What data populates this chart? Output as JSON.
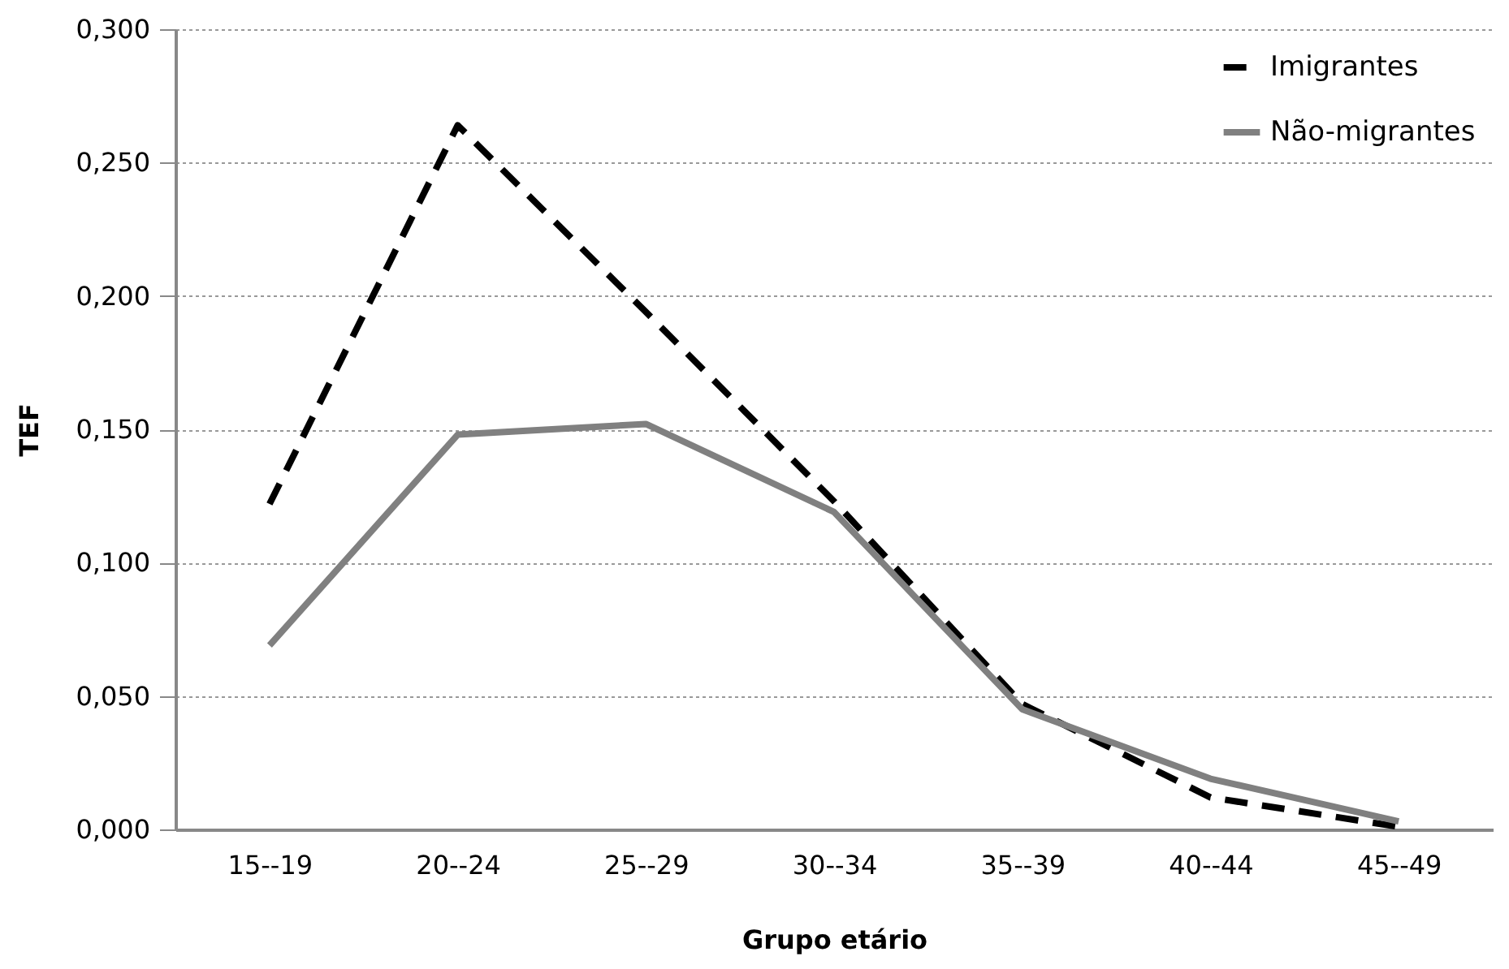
{
  "chart_data": {
    "type": "line",
    "xlabel": "Grupo etário",
    "ylabel": "TEF",
    "categories": [
      "15--19",
      "20--24",
      "25--29",
      "30--34",
      "35--39",
      "40--44",
      "45--49"
    ],
    "series": [
      {
        "name": "Imigrantes",
        "color": "#000000",
        "line_style": "dashed",
        "values": [
          0.122,
          0.264,
          0.194,
          0.123,
          0.047,
          0.012,
          0.001
        ]
      },
      {
        "name": "Não-migrantes",
        "color": "#808080",
        "line_style": "solid",
        "values": [
          0.069,
          0.148,
          0.152,
          0.119,
          0.045,
          0.019,
          0.003
        ]
      }
    ],
    "ylim": [
      0,
      0.3
    ],
    "yticks": [
      {
        "value": 0,
        "label": "0,000"
      },
      {
        "value": 0.05,
        "label": "0,050"
      },
      {
        "value": 0.1,
        "label": "0,100"
      },
      {
        "value": 0.15,
        "label": "0,150"
      },
      {
        "value": 0.2,
        "label": "0,200"
      },
      {
        "value": 0.25,
        "label": "0,250"
      },
      {
        "value": 0.3,
        "label": "0,300"
      }
    ],
    "grid": "y",
    "legend": "top right",
    "marker": "none"
  }
}
